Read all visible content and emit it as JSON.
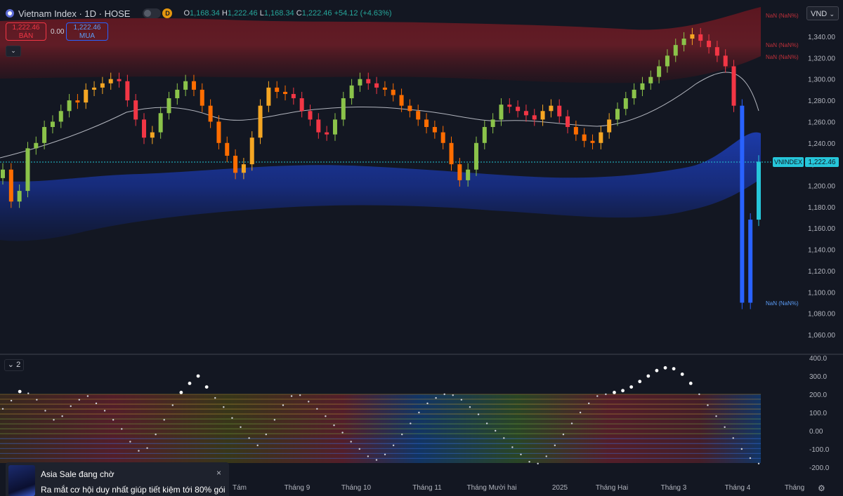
{
  "header": {
    "symbol_title": "Vietnam Index · 1D · HOSE",
    "interval_badge": "D",
    "o_label": "O",
    "o_value": "1,168.34",
    "h_label": "H",
    "h_value": "1,222.46",
    "l_label": "L",
    "l_value": "1,168.34",
    "c_label": "C",
    "c_value": "1,222.46",
    "change": "+54.12 (+4.63%)"
  },
  "trade": {
    "sell_price": "1,222.46",
    "sell_label": "BÁN",
    "spread": "0.00",
    "buy_price": "1,222.46",
    "buy_label": "MUA"
  },
  "currency": "VND",
  "pane2_label": "2",
  "nan_labels": [
    "NaN (NaN%)",
    "NaN (NaN%)",
    "NaN (NaN%)",
    "NaN (NaN%)"
  ],
  "price_tag": {
    "name": "VNINDEX",
    "value": "1,222.46"
  },
  "popup": {
    "title": "Asia Sale đang chờ",
    "body": "Ra mắt cơ hội duy nhất giúp tiết kiệm tới 80% gói",
    "close": "×"
  },
  "colors": {
    "background": "#131722",
    "up": "#26a69a",
    "down": "#f23645",
    "accent": "#2962ff"
  },
  "chart_data": {
    "type": "candlestick",
    "y_axis_ticks": [
      "1,340.00",
      "1,320.00",
      "1,300.00",
      "1,280.00",
      "1,260.00",
      "1,240.00",
      "1,220.00",
      "1,200.00",
      "1,180.00",
      "1,160.00",
      "1,140.00",
      "1,120.00",
      "1,100.00",
      "1,080.00",
      "1,060.00"
    ],
    "ylim": [
      1050,
      1360
    ],
    "x_axis_ticks": [
      "Tám",
      "Tháng 9",
      "Tháng 10",
      "Tháng 11",
      "Tháng Mười hai",
      "2025",
      "Tháng Hai",
      "Tháng 3",
      "Tháng 4",
      "Tháng"
    ],
    "last_close": 1222.46,
    "close": [
      1215,
      1185,
      1195,
      1235,
      1240,
      1255,
      1260,
      1270,
      1280,
      1278,
      1290,
      1292,
      1296,
      1300,
      1298,
      1280,
      1262,
      1245,
      1250,
      1268,
      1282,
      1290,
      1298,
      1290,
      1275,
      1260,
      1240,
      1228,
      1212,
      1220,
      1245,
      1275,
      1292,
      1288,
      1286,
      1282,
      1270,
      1262,
      1250,
      1248,
      1262,
      1282,
      1294,
      1300,
      1296,
      1292,
      1290,
      1285,
      1275,
      1270,
      1262,
      1255,
      1250,
      1240,
      1220,
      1205,
      1215,
      1240,
      1255,
      1262,
      1276,
      1274,
      1270,
      1266,
      1262,
      1270,
      1275,
      1265,
      1255,
      1248,
      1242,
      1240,
      1250,
      1262,
      1272,
      1282,
      1290,
      1296,
      1302,
      1312,
      1322,
      1332,
      1338,
      1342,
      1336,
      1330,
      1322,
      1312,
      1275,
      1090,
      1168,
      1222.46
    ],
    "oscillator": {
      "y_axis_ticks": [
        "400.0",
        "300.0",
        "200.0",
        "100.0",
        "0.00",
        "-100.0",
        "-200.0"
      ],
      "ylim": [
        -220,
        410
      ],
      "values": [
        120,
        165,
        215,
        205,
        170,
        110,
        60,
        80,
        135,
        170,
        190,
        150,
        110,
        60,
        10,
        -60,
        -110,
        -95,
        -20,
        60,
        140,
        210,
        260,
        300,
        240,
        180,
        130,
        70,
        20,
        -40,
        -80,
        -20,
        60,
        140,
        190,
        195,
        160,
        120,
        80,
        30,
        -10,
        -60,
        -100,
        -140,
        -160,
        -130,
        -80,
        -20,
        40,
        100,
        150,
        180,
        200,
        195,
        170,
        130,
        90,
        40,
        0,
        -40,
        -90,
        -130,
        -170,
        -180,
        -140,
        -80,
        -20,
        40,
        100,
        150,
        190,
        200,
        210,
        220,
        240,
        270,
        300,
        330,
        345,
        340,
        310,
        260,
        200,
        140,
        80,
        20,
        -40,
        -100,
        -150,
        -180
      ]
    }
  }
}
